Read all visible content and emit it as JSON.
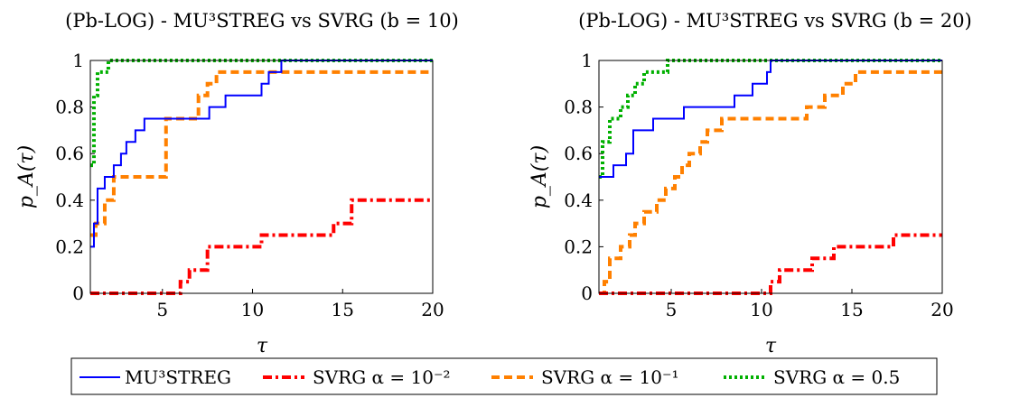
{
  "chart_data": [
    {
      "type": "line",
      "title": "(Pb-LOG) - MU³STREG vs SVRG (b = 10)",
      "xlabel": "τ",
      "ylabel": "p_A(τ)",
      "xlim": [
        1,
        20
      ],
      "ylim": [
        0,
        1
      ],
      "xticks": [
        "5",
        "10",
        "15",
        "20"
      ],
      "yticks": [
        "0",
        "0.2",
        "0.4",
        "0.6",
        "0.8",
        "1"
      ],
      "grid": false,
      "series": [
        {
          "name": "MU³STREG",
          "color": "#0000ff",
          "style": "solid",
          "x": [
            1.0,
            1.2,
            1.4,
            1.8,
            2.3,
            2.7,
            3.0,
            3.5,
            4.0,
            4.5,
            5.0,
            7.6,
            8.5,
            10.5,
            10.9,
            11.6,
            20.0
          ],
          "y": [
            0.2,
            0.3,
            0.45,
            0.5,
            0.55,
            0.6,
            0.65,
            0.7,
            0.75,
            0.75,
            0.75,
            0.8,
            0.85,
            0.9,
            0.95,
            1.0,
            1.0
          ]
        },
        {
          "name": "SVRG α = 10⁻²",
          "color": "#ff0000",
          "style": "dashdot",
          "x": [
            1.0,
            6.0,
            6.5,
            7.5,
            10.5,
            13.0,
            14.5,
            15.5,
            20.0
          ],
          "y": [
            0.0,
            0.05,
            0.1,
            0.2,
            0.25,
            0.25,
            0.3,
            0.4,
            0.4
          ]
        },
        {
          "name": "SVRG α = 10⁻¹",
          "color": "#ff8000",
          "style": "dashed",
          "x": [
            1.0,
            1.3,
            1.8,
            2.3,
            5.2,
            7.0,
            7.5,
            8.0,
            20.0
          ],
          "y": [
            0.25,
            0.3,
            0.4,
            0.5,
            0.75,
            0.85,
            0.9,
            0.95,
            0.95
          ]
        },
        {
          "name": "SVRG α = 0.5",
          "color": "#00b000",
          "style": "dotted",
          "x": [
            1.0,
            1.2,
            1.4,
            1.6,
            2.0,
            20.0
          ],
          "y": [
            0.55,
            0.85,
            0.95,
            0.95,
            1.0,
            1.0
          ]
        }
      ]
    },
    {
      "type": "line",
      "title": "(Pb-LOG) - MU³STREG vs SVRG (b = 20)",
      "xlabel": "τ",
      "ylabel": "p_A(τ)",
      "xlim": [
        1,
        20
      ],
      "ylim": [
        0,
        1
      ],
      "xticks": [
        "5",
        "10",
        "15",
        "20"
      ],
      "yticks": [
        "0",
        "0.2",
        "0.4",
        "0.6",
        "0.8",
        "1"
      ],
      "grid": false,
      "series": [
        {
          "name": "MU³STREG",
          "color": "#0000ff",
          "style": "solid",
          "x": [
            1.0,
            1.8,
            2.5,
            2.9,
            3.2,
            4.0,
            5.7,
            8.5,
            9.5,
            10.3,
            10.5,
            20.0
          ],
          "y": [
            0.5,
            0.55,
            0.6,
            0.7,
            0.7,
            0.75,
            0.8,
            0.85,
            0.9,
            0.95,
            1.0,
            1.0
          ]
        },
        {
          "name": "SVRG α = 10⁻²",
          "color": "#ff0000",
          "style": "dashdot",
          "x": [
            1.0,
            10.5,
            11.0,
            11.5,
            12.8,
            14.0,
            14.5,
            17.3,
            20.0
          ],
          "y": [
            0.0,
            0.05,
            0.1,
            0.1,
            0.15,
            0.2,
            0.2,
            0.25,
            0.25
          ]
        },
        {
          "name": "SVRG α = 10⁻¹",
          "color": "#ff8000",
          "style": "dashed",
          "x": [
            1.0,
            1.3,
            1.6,
            2.2,
            2.7,
            3.0,
            3.5,
            4.2,
            4.7,
            5.2,
            5.6,
            6.0,
            6.6,
            7.0,
            7.8,
            10.0,
            12.5,
            13.5,
            14.5,
            15.2,
            20.0
          ],
          "y": [
            0.0,
            0.05,
            0.15,
            0.2,
            0.25,
            0.3,
            0.35,
            0.4,
            0.45,
            0.5,
            0.55,
            0.6,
            0.65,
            0.7,
            0.75,
            0.75,
            0.8,
            0.85,
            0.9,
            0.95,
            0.95
          ]
        },
        {
          "name": "SVRG α = 0.5",
          "color": "#00b000",
          "style": "dotted",
          "x": [
            1.0,
            1.2,
            1.6,
            2.2,
            2.6,
            3.0,
            3.5,
            4.2,
            4.8,
            20.0
          ],
          "y": [
            0.5,
            0.65,
            0.75,
            0.8,
            0.85,
            0.9,
            0.95,
            0.95,
            1.0,
            1.0
          ]
        }
      ]
    }
  ],
  "legend": {
    "placement": "bottom",
    "entries": [
      {
        "label": "MU³STREG",
        "color": "#0000ff",
        "style": "solid"
      },
      {
        "label": "SVRG α = 10⁻²",
        "color": "#ff0000",
        "style": "dashdot"
      },
      {
        "label": "SVRG α = 10⁻¹",
        "color": "#ff8000",
        "style": "dashed"
      },
      {
        "label": "SVRG α = 0.5",
        "color": "#00b000",
        "style": "dotted"
      }
    ]
  }
}
